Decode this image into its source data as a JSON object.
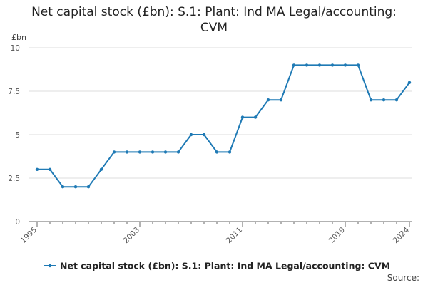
{
  "title_lines": [
    "Net capital stock (£bn): S.1: Plant: Ind MA Legal/accounting:",
    "CVM"
  ],
  "unit_label": "£bn",
  "source_label": "Source:",
  "colors": {
    "line": "#1f7ab5",
    "grid": "#dddddd",
    "axis": "#666666"
  },
  "chart_data": {
    "type": "line",
    "title": "Net capital stock (£bn): S.1: Plant: Ind MA Legal/accounting: CVM",
    "ylabel": "£bn",
    "xlabel": "",
    "ylim": [
      0,
      10
    ],
    "yticks": [
      0,
      2.5,
      5,
      7.5,
      10
    ],
    "ytick_labels": [
      "0",
      "2.5",
      "5",
      "7.5",
      "10"
    ],
    "xticks": [
      1995,
      2003,
      2011,
      2019,
      2024
    ],
    "grid": "horizontal",
    "legend_position": "bottom",
    "series": [
      {
        "name": "Net capital stock (£bn): S.1: Plant: Ind MA Legal/accounting: CVM",
        "x": [
          1995,
          1996,
          1997,
          1998,
          1999,
          2000,
          2001,
          2002,
          2003,
          2004,
          2005,
          2006,
          2007,
          2008,
          2009,
          2010,
          2011,
          2012,
          2013,
          2014,
          2015,
          2016,
          2017,
          2018,
          2019,
          2020,
          2021,
          2022,
          2023,
          2024
        ],
        "values": [
          3,
          3,
          2,
          2,
          2,
          3,
          4,
          4,
          4,
          4,
          4,
          4,
          5,
          5,
          4,
          4,
          6,
          6,
          7,
          7,
          9,
          9,
          9,
          9,
          9,
          9,
          7,
          7,
          7,
          8
        ]
      }
    ]
  }
}
